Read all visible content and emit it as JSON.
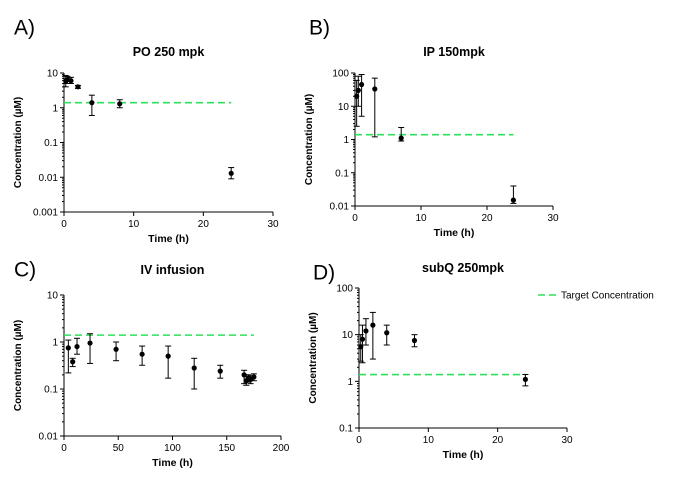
{
  "legend": {
    "label": "Target Concentration",
    "color": "#2ee05b"
  },
  "chart_data": [
    {
      "letter": "A)",
      "title": "PO 250 mpk",
      "type": "scatter",
      "xlabel": "Time (h)",
      "ylabel": "Concentration (µM)",
      "xlim": [
        0,
        30
      ],
      "xticks": [
        "0",
        "10",
        "20",
        "30"
      ],
      "ylim": [
        0.001,
        10
      ],
      "yscale": "log",
      "yticks": [
        "0.001",
        "0.01",
        "0.1",
        "1",
        "10"
      ],
      "target": {
        "y": 1.4,
        "x": [
          0,
          24
        ]
      },
      "points": [
        {
          "x": 0.25,
          "y": 6.0,
          "lo": 4.0,
          "hi": 8.5
        },
        {
          "x": 0.5,
          "y": 6.5,
          "lo": 5.0,
          "hi": 8.0
        },
        {
          "x": 1,
          "y": 6.0,
          "lo": 5.0,
          "hi": 7.5
        },
        {
          "x": 2,
          "y": 4.0,
          "lo": 3.6,
          "hi": 4.4
        },
        {
          "x": 4,
          "y": 1.4,
          "lo": 0.6,
          "hi": 2.3
        },
        {
          "x": 8,
          "y": 1.3,
          "lo": 1.0,
          "hi": 1.7
        },
        {
          "x": 24,
          "y": 0.013,
          "lo": 0.009,
          "hi": 0.019
        }
      ]
    },
    {
      "letter": "B)",
      "title": "IP 150mpk",
      "type": "scatter",
      "xlabel": "Time (h)",
      "ylabel": "Concentration (µM)",
      "xlim": [
        0,
        30
      ],
      "xticks": [
        "0",
        "10",
        "20",
        "30"
      ],
      "ylim": [
        0.01,
        100
      ],
      "yscale": "log",
      "yticks": [
        "0.01",
        "0.1",
        "1",
        "10",
        "100"
      ],
      "target": {
        "y": 1.4,
        "x": [
          0,
          24
        ]
      },
      "points": [
        {
          "x": 0.25,
          "y": 20,
          "lo": 2.5,
          "hi": 60
        },
        {
          "x": 0.5,
          "y": 30,
          "lo": 10,
          "hi": 80
        },
        {
          "x": 1,
          "y": 45,
          "lo": 5,
          "hi": 90
        },
        {
          "x": 3,
          "y": 33,
          "lo": 1.2,
          "hi": 70
        },
        {
          "x": 7,
          "y": 1.1,
          "lo": 0.9,
          "hi": 2.3
        },
        {
          "x": 24,
          "y": 0.015,
          "lo": 0.012,
          "hi": 0.04
        }
      ]
    },
    {
      "letter": "C)",
      "title": "IV infusion",
      "type": "scatter",
      "xlabel": "Time (h)",
      "ylabel": "Concentration (µM)",
      "xlim": [
        0,
        200
      ],
      "xticks": [
        "0",
        "50",
        "100",
        "150",
        "200"
      ],
      "ylim": [
        0.01,
        10
      ],
      "yscale": "log",
      "yticks": [
        "0.01",
        "0.1",
        "1",
        "10"
      ],
      "target": {
        "y": 1.4,
        "x": [
          0,
          175
        ]
      },
      "points": [
        {
          "x": 4,
          "y": 0.75,
          "lo": 0.22,
          "hi": 1.1
        },
        {
          "x": 8,
          "y": 0.38,
          "lo": 0.3,
          "hi": 0.45
        },
        {
          "x": 12,
          "y": 0.8,
          "lo": 0.55,
          "hi": 1.2
        },
        {
          "x": 24,
          "y": 0.95,
          "lo": 0.35,
          "hi": 1.5
        },
        {
          "x": 48,
          "y": 0.7,
          "lo": 0.4,
          "hi": 1.0
        },
        {
          "x": 72,
          "y": 0.55,
          "lo": 0.32,
          "hi": 0.82
        },
        {
          "x": 96,
          "y": 0.5,
          "lo": 0.17,
          "hi": 0.82
        },
        {
          "x": 120,
          "y": 0.28,
          "lo": 0.1,
          "hi": 0.45
        },
        {
          "x": 144,
          "y": 0.24,
          "lo": 0.17,
          "hi": 0.32
        },
        {
          "x": 166,
          "y": 0.2,
          "lo": 0.13,
          "hi": 0.25
        },
        {
          "x": 168,
          "y": 0.15,
          "lo": 0.12,
          "hi": 0.2
        },
        {
          "x": 170,
          "y": 0.17,
          "lo": 0.14,
          "hi": 0.2
        },
        {
          "x": 172,
          "y": 0.16,
          "lo": 0.13,
          "hi": 0.19
        },
        {
          "x": 175,
          "y": 0.18,
          "lo": 0.15,
          "hi": 0.21
        }
      ]
    },
    {
      "letter": "D)",
      "title": "subQ 250mpk",
      "type": "scatter",
      "xlabel": "Time (h)",
      "ylabel": "Concentration (µM)",
      "xlim": [
        0,
        30
      ],
      "xticks": [
        "0",
        "10",
        "20",
        "30"
      ],
      "ylim": [
        0.1,
        100
      ],
      "yscale": "log",
      "yticks": [
        "0.1",
        "1",
        "10",
        "100"
      ],
      "target": {
        "y": 1.4,
        "x": [
          0,
          24
        ]
      },
      "points": [
        {
          "x": 0.25,
          "y": 5.5,
          "lo": 2.7,
          "hi": 10
        },
        {
          "x": 0.5,
          "y": 8.0,
          "lo": 2.5,
          "hi": 16
        },
        {
          "x": 1,
          "y": 12,
          "lo": 6.0,
          "hi": 22
        },
        {
          "x": 2,
          "y": 16,
          "lo": 3.0,
          "hi": 30
        },
        {
          "x": 4,
          "y": 11,
          "lo": 6.0,
          "hi": 16
        },
        {
          "x": 8,
          "y": 7.5,
          "lo": 5.5,
          "hi": 10
        },
        {
          "x": 24,
          "y": 1.1,
          "lo": 0.8,
          "hi": 1.4
        }
      ]
    }
  ]
}
